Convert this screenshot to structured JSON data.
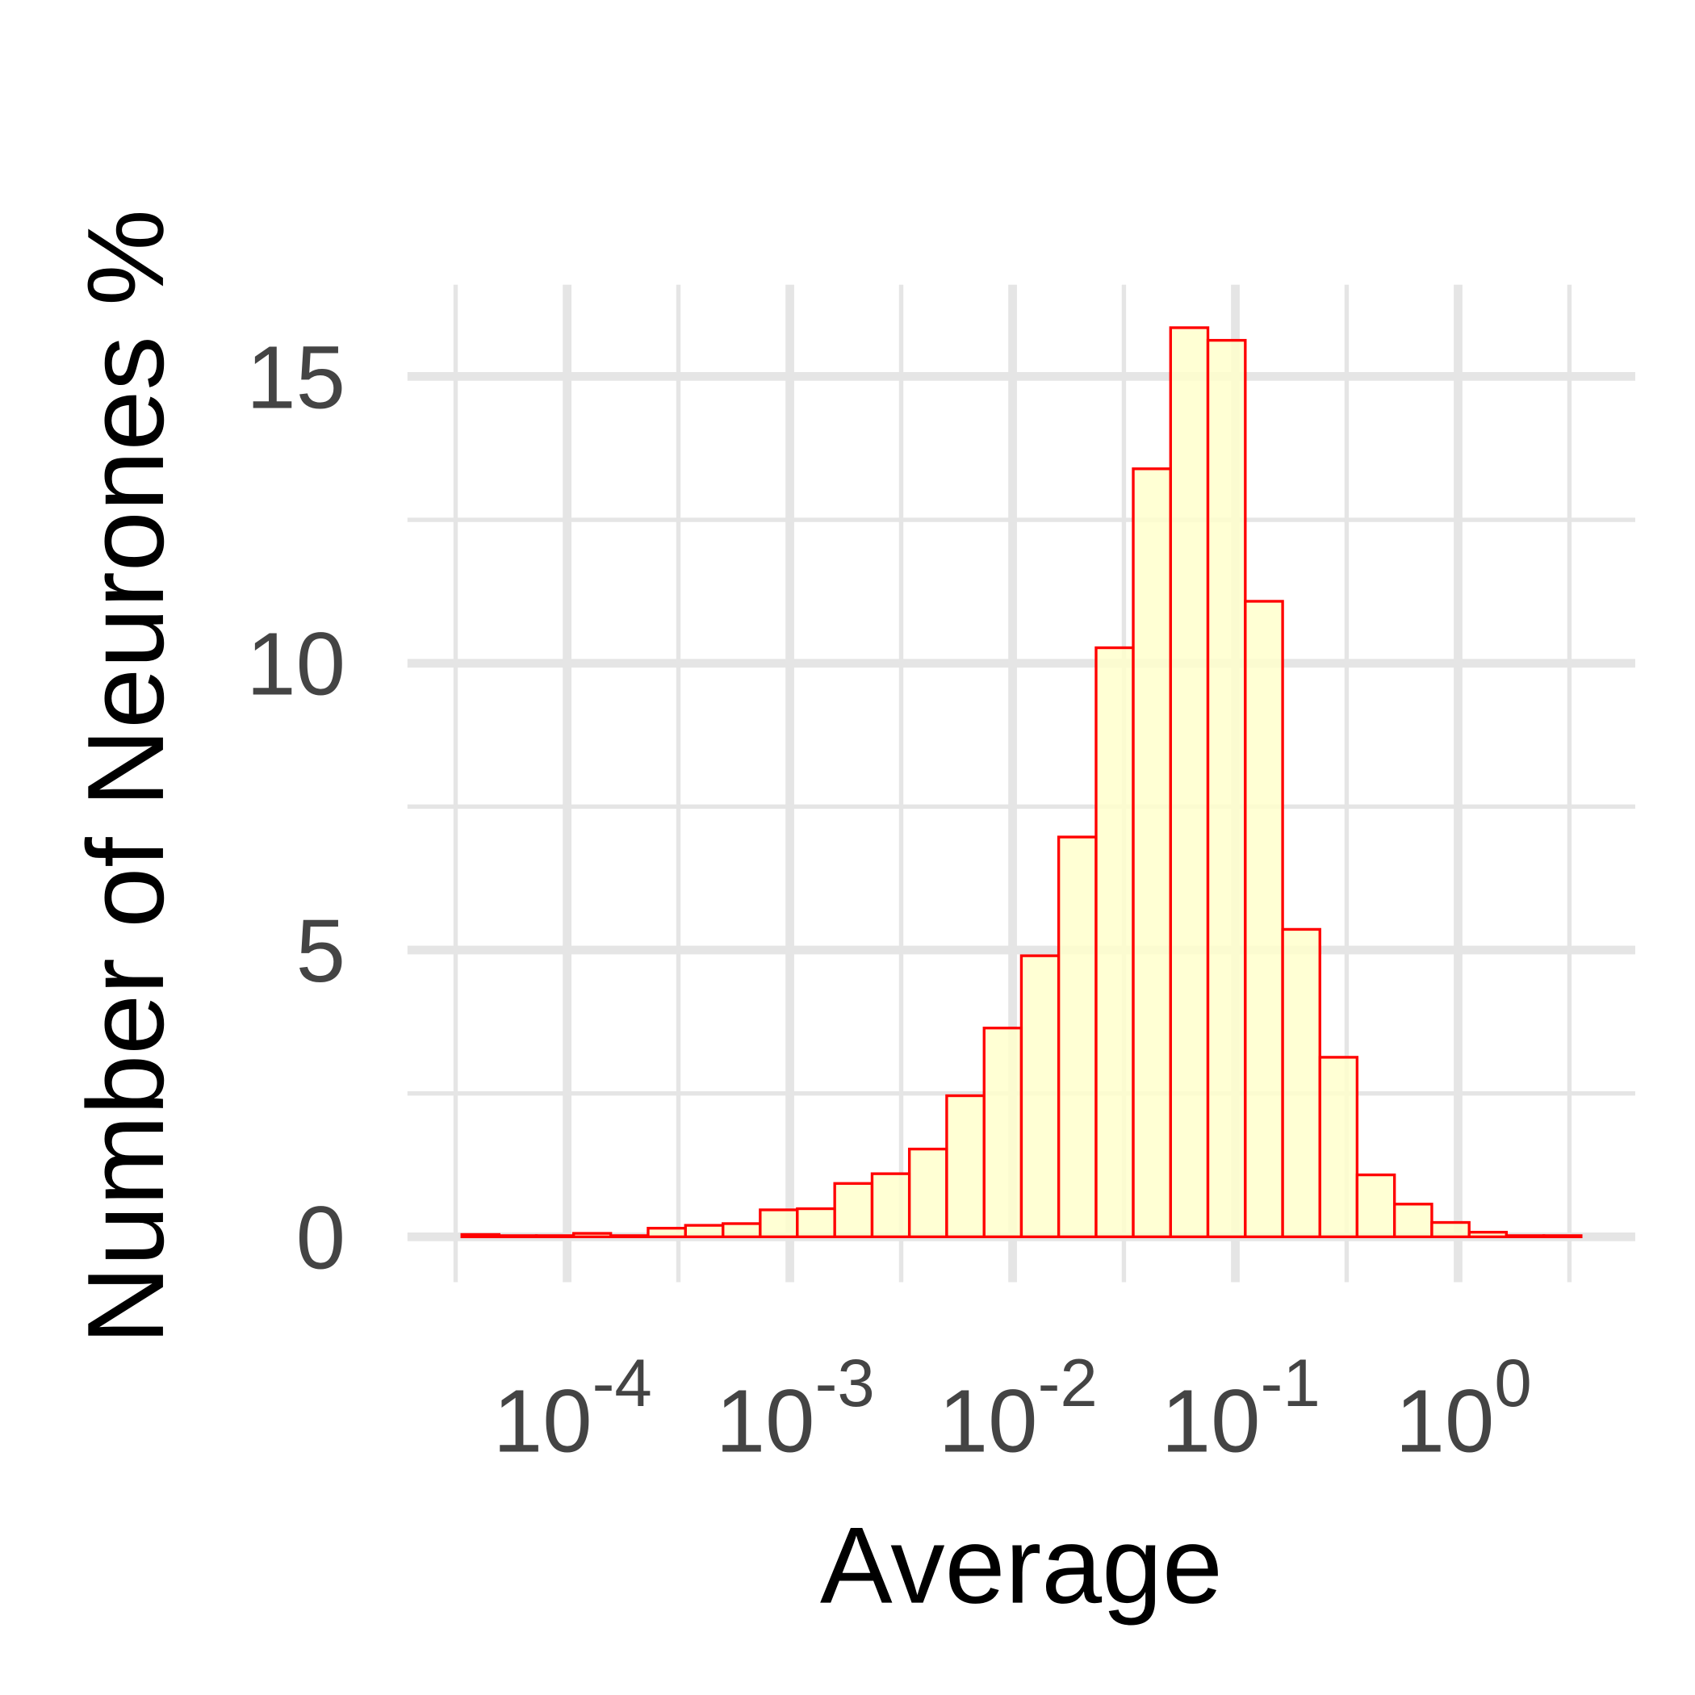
{
  "chart_data": {
    "type": "histogram",
    "x_label": "Average",
    "y_label": "Number of Neurones %",
    "x_log": true,
    "bins": [
      3.37e-05,
      4.95e-05,
      7.28e-05,
      0.000107,
      0.000157,
      0.000231,
      0.00034,
      0.000501,
      0.000736,
      0.00108,
      0.00159,
      0.00234,
      0.00344,
      0.00506,
      0.00745,
      0.01095,
      0.0161,
      0.0237,
      0.0348,
      0.0512,
      0.0753,
      0.1108,
      0.163,
      0.2396,
      0.352,
      0.518,
      0.762,
      1.121,
      1.648,
      2.424,
      3.565
    ],
    "values": [
      0.04,
      0.02,
      0.02,
      0.06,
      0.02,
      0.15,
      0.2,
      0.23,
      0.47,
      0.49,
      0.93,
      1.1,
      1.53,
      2.46,
      3.64,
      4.9,
      6.97,
      10.27,
      13.39,
      15.85,
      15.63,
      11.08,
      5.36,
      3.13,
      1.08,
      0.57,
      0.25,
      0.08,
      0.02,
      0.02
    ],
    "color": "#ffffcc",
    "edge_color": "#ff0000",
    "xlim": [
      1.92e-05,
      6.24
    ],
    "ylim": [
      -0.79,
      16.6
    ],
    "xticks": [
      {
        "value": 0.0001,
        "label": "10",
        "exponent": "-4"
      },
      {
        "value": 0.001,
        "label": "10",
        "exponent": "-3"
      },
      {
        "value": 0.01,
        "label": "10",
        "exponent": "-2"
      },
      {
        "value": 0.1,
        "label": "10",
        "exponent": "-1"
      },
      {
        "value": 1,
        "label": "10",
        "exponent": "0"
      }
    ],
    "xticks_minor": [
      3.16e-05,
      0.000316,
      0.00316,
      0.0316,
      0.316,
      3.16
    ],
    "yticks": [
      0,
      5,
      10,
      15
    ],
    "yticks_minor": [
      2.5,
      7.5,
      12.5
    ],
    "grid": true
  }
}
